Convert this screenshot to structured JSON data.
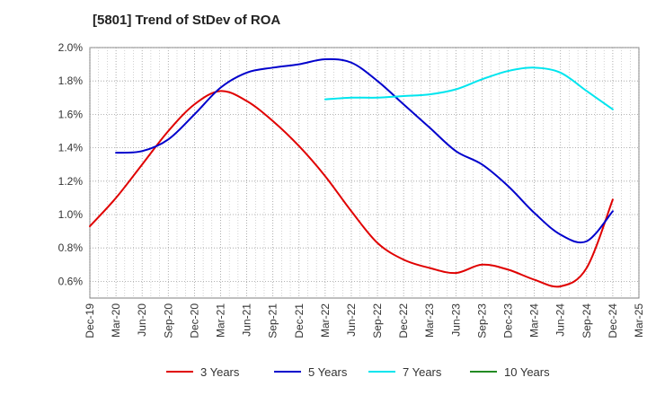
{
  "chart_data": {
    "type": "line",
    "title": "[5801]  Trend of StDev of ROA",
    "xlabel": "",
    "ylabel": "",
    "x_ticks": [
      "Dec-19",
      "Mar-20",
      "Jun-20",
      "Sep-20",
      "Dec-20",
      "Mar-21",
      "Jun-21",
      "Sep-21",
      "Dec-21",
      "Mar-22",
      "Jun-22",
      "Sep-22",
      "Dec-22",
      "Mar-23",
      "Jun-23",
      "Sep-23",
      "Dec-23",
      "Mar-24",
      "Jun-24",
      "Sep-24",
      "Dec-24",
      "Mar-25"
    ],
    "y_ticks": [
      "0.6%",
      "0.8%",
      "1.0%",
      "1.2%",
      "1.4%",
      "1.6%",
      "1.8%",
      "2.0%"
    ],
    "ylim": [
      0.5,
      2.0
    ],
    "grid": true,
    "legend_position": "bottom",
    "series": [
      {
        "name": "3 Years",
        "color": "#e00000",
        "x": [
          "Dec-19",
          "Mar-20",
          "Jun-20",
          "Sep-20",
          "Dec-20",
          "Mar-21",
          "Jun-21",
          "Sep-21",
          "Dec-21",
          "Mar-22",
          "Jun-22",
          "Sep-22",
          "Dec-22",
          "Mar-23",
          "Jun-23",
          "Sep-23",
          "Dec-23",
          "Mar-24",
          "Jun-24",
          "Sep-24",
          "Dec-24"
        ],
        "values": [
          0.93,
          1.1,
          1.3,
          1.5,
          1.66,
          1.74,
          1.68,
          1.56,
          1.41,
          1.23,
          1.02,
          0.83,
          0.73,
          0.68,
          0.65,
          0.7,
          0.67,
          0.61,
          0.57,
          0.68,
          1.09
        ]
      },
      {
        "name": "5 Years",
        "color": "#0000cc",
        "x": [
          "Mar-20",
          "Jun-20",
          "Sep-20",
          "Dec-20",
          "Mar-21",
          "Jun-21",
          "Sep-21",
          "Dec-21",
          "Mar-22",
          "Jun-22",
          "Sep-22",
          "Dec-22",
          "Mar-23",
          "Jun-23",
          "Sep-23",
          "Dec-23",
          "Mar-24",
          "Jun-24",
          "Sep-24",
          "Dec-24"
        ],
        "values": [
          1.37,
          1.38,
          1.45,
          1.6,
          1.76,
          1.85,
          1.88,
          1.9,
          1.93,
          1.91,
          1.8,
          1.66,
          1.52,
          1.38,
          1.3,
          1.17,
          1.01,
          0.88,
          0.84,
          1.02
        ]
      },
      {
        "name": "7 Years",
        "color": "#00e5ee",
        "x": [
          "Mar-22",
          "Jun-22",
          "Sep-22",
          "Dec-22",
          "Mar-23",
          "Jun-23",
          "Sep-23",
          "Dec-23",
          "Mar-24",
          "Jun-24",
          "Sep-24",
          "Dec-24"
        ],
        "values": [
          1.69,
          1.7,
          1.7,
          1.71,
          1.72,
          1.75,
          1.81,
          1.86,
          1.88,
          1.85,
          1.74,
          1.63
        ]
      },
      {
        "name": "10 Years",
        "color": "#228b22",
        "x": [],
        "values": []
      }
    ]
  }
}
